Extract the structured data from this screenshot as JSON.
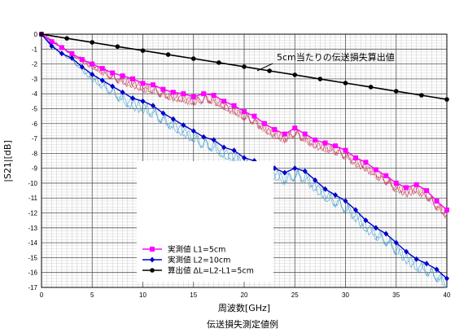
{
  "chart_data": {
    "type": "line",
    "title": "",
    "caption": "伝送損失測定値例",
    "xlabel": "周波数[GHz]",
    "ylabel": "|S21|[dB]",
    "xlim": [
      0,
      40
    ],
    "ylim": [
      -17,
      0
    ],
    "x_ticks": [
      "0",
      "5",
      "10",
      "15",
      "20",
      "25",
      "30",
      "35",
      "40"
    ],
    "y_ticks": [
      "0",
      "-1",
      "-2",
      "-3",
      "-4",
      "-5",
      "-6",
      "-7",
      "-8",
      "-9",
      "-10",
      "-11",
      "-12",
      "-13",
      "-14",
      "-15",
      "-16",
      "-17"
    ],
    "grid": true,
    "minor_grid_x_step": 0.5,
    "minor_grid_y_step": 0.2,
    "legend_position": "bottom-left",
    "annotation": "5cm当たりの伝送損失算出値",
    "series": [
      {
        "name": "実測値 L1=5cm",
        "color": "#ff00ff",
        "marker": "square",
        "x": [
          0,
          1,
          2,
          3,
          4,
          5,
          6,
          7,
          8,
          9,
          10,
          11,
          12,
          13,
          14,
          15,
          16,
          17,
          18,
          19,
          20,
          21,
          22,
          23,
          24,
          25,
          26,
          27,
          28,
          29,
          30,
          31,
          32,
          33,
          34,
          35,
          36,
          37,
          38,
          39,
          40
        ],
        "y": [
          0,
          -0.5,
          -0.9,
          -1.3,
          -1.7,
          -2.0,
          -2.3,
          -2.6,
          -2.8,
          -3.0,
          -3.3,
          -3.4,
          -3.7,
          -3.9,
          -4.0,
          -4.2,
          -4.0,
          -4.1,
          -4.5,
          -4.8,
          -5.2,
          -5.5,
          -6.0,
          -6.4,
          -6.7,
          -6.3,
          -6.7,
          -7.1,
          -7.3,
          -7.5,
          -7.8,
          -8.3,
          -8.6,
          -9.1,
          -9.5,
          -10.0,
          -10.3,
          -10.1,
          -10.5,
          -11.2,
          -11.8
        ]
      },
      {
        "name": "実測値 L2=10cm",
        "color": "#0000cc",
        "marker": "diamond",
        "x": [
          0,
          1,
          2,
          3,
          4,
          5,
          6,
          7,
          8,
          9,
          10,
          11,
          12,
          13,
          14,
          15,
          16,
          17,
          18,
          19,
          20,
          21,
          22,
          23,
          24,
          25,
          26,
          27,
          28,
          29,
          30,
          31,
          32,
          33,
          34,
          35,
          36,
          37,
          38,
          39,
          40
        ],
        "y": [
          0,
          -0.8,
          -1.3,
          -1.6,
          -2.2,
          -2.7,
          -3.1,
          -3.5,
          -3.9,
          -4.3,
          -4.5,
          -4.8,
          -5.3,
          -5.7,
          -6.1,
          -6.5,
          -6.9,
          -7.1,
          -7.6,
          -7.8,
          -8.3,
          -8.5,
          -8.8,
          -9.0,
          -9.3,
          -9.0,
          -9.2,
          -9.8,
          -10.4,
          -10.8,
          -11.2,
          -11.8,
          -12.5,
          -13.0,
          -13.4,
          -14.0,
          -14.6,
          -15.1,
          -15.4,
          -15.8,
          -16.4
        ]
      },
      {
        "name": "算出値 ΔL=L2-L1=5cm",
        "color": "#000000",
        "marker": "circle",
        "x": [
          0,
          2.5,
          5,
          7.5,
          10,
          12.5,
          15,
          17.5,
          20,
          22.5,
          25,
          27.5,
          30,
          32.5,
          35,
          37.5,
          40
        ],
        "y": [
          0,
          -0.28,
          -0.55,
          -0.83,
          -1.1,
          -1.37,
          -1.64,
          -1.91,
          -2.18,
          -2.46,
          -2.73,
          -3.01,
          -3.28,
          -3.55,
          -3.83,
          -4.1,
          -4.38
        ]
      }
    ]
  }
}
